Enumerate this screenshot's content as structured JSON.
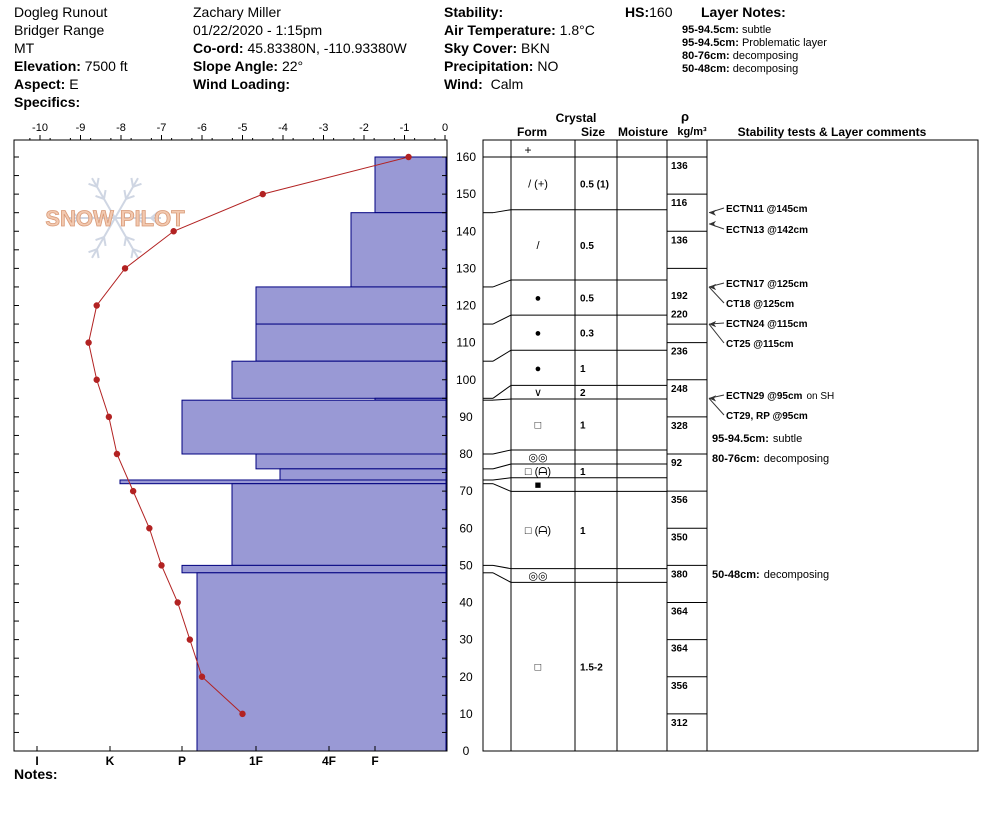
{
  "header": {
    "location": "Dogleg Runout",
    "range": "Bridger Range",
    "state": "MT",
    "elevation_label": "Elevation:",
    "elevation": "7500 ft",
    "aspect_label": "Aspect:",
    "aspect": "E",
    "specifics_label": "Specifics:",
    "observer": "Zachary Miller",
    "datetime": "01/22/2020 - 1:15pm",
    "coord_label": "Co-ord:",
    "coord": "45.83380N, -110.93380W",
    "slope_label": "Slope Angle:",
    "slope": "22°",
    "wind_loading_label": "Wind Loading:",
    "stability_label": "Stability:",
    "air_temp_label": "Air Temperature:",
    "air_temp": "1.8°C",
    "sky_label": "Sky Cover:",
    "sky": "BKN",
    "precip_label": "Precipitation:",
    "precip": "NO",
    "wind_label": "Wind:",
    "wind": "Calm",
    "hs_label": "HS:",
    "hs": "160",
    "layer_notes_label": "Layer Notes:"
  },
  "layer_notes": [
    {
      "range": "95-94.5cm:",
      "text": "subtle"
    },
    {
      "range": "95-94.5cm:",
      "text": "Problematic layer"
    },
    {
      "range": "80-76cm:",
      "text": "decomposing"
    },
    {
      "range": "50-48cm:",
      "text": "decomposing"
    }
  ],
  "notes_label": "Notes:",
  "watermark": "SNOW PILOT",
  "table_headers": {
    "crystal": "Crystal",
    "form": "Form",
    "size": "Size",
    "moisture": "Moisture",
    "rho": "ρ",
    "density_unit": "kg/m³",
    "stability": "Stability tests & Layer comments"
  },
  "colors": {
    "hardness_fill": "#9999d5",
    "hardness_stroke": "#000080",
    "temp_line": "#b22222"
  },
  "chart_data": {
    "type": "snow-profile",
    "temperature_axis": {
      "min": -10,
      "max": 0,
      "ticks": [
        -10,
        -9,
        -8,
        -7,
        -6,
        -5,
        -4,
        -3,
        -2,
        -1,
        0
      ]
    },
    "height_axis": {
      "min": 0,
      "max": 160,
      "ticks": [
        0,
        10,
        20,
        30,
        40,
        50,
        60,
        70,
        80,
        90,
        100,
        110,
        120,
        130,
        140,
        150,
        160
      ]
    },
    "hardness_axis": {
      "labels": [
        "I",
        "K",
        "P",
        "1F",
        "4F",
        "F"
      ]
    },
    "temperature_profile": [
      {
        "h": 160,
        "t": -0.9
      },
      {
        "h": 150,
        "t": -4.5
      },
      {
        "h": 140,
        "t": -6.7
      },
      {
        "h": 130,
        "t": -7.9
      },
      {
        "h": 120,
        "t": -8.6
      },
      {
        "h": 110,
        "t": -8.8
      },
      {
        "h": 100,
        "t": -8.6
      },
      {
        "h": 90,
        "t": -8.3
      },
      {
        "h": 80,
        "t": -8.1
      },
      {
        "h": 70,
        "t": -7.7
      },
      {
        "h": 60,
        "t": -7.3
      },
      {
        "h": 50,
        "t": -7.0
      },
      {
        "h": 40,
        "t": -6.6
      },
      {
        "h": 30,
        "t": -6.3
      },
      {
        "h": 20,
        "t": -6.0
      },
      {
        "h": 10,
        "t": -5.0
      }
    ],
    "hardness_layers": [
      {
        "top": 160,
        "bottom": 145,
        "hardness": "F"
      },
      {
        "top": 145,
        "bottom": 125,
        "hardness": "F+"
      },
      {
        "top": 125,
        "bottom": 115,
        "hardness": "1F"
      },
      {
        "top": 115,
        "bottom": 105,
        "hardness": "1F"
      },
      {
        "top": 105,
        "bottom": 95,
        "hardness": "1F-"
      },
      {
        "top": 95,
        "bottom": 94.5,
        "hardness": "F"
      },
      {
        "top": 94.5,
        "bottom": 80,
        "hardness": "P"
      },
      {
        "top": 80,
        "bottom": 76,
        "hardness": "1F"
      },
      {
        "top": 76,
        "bottom": 73,
        "hardness": "1F+"
      },
      {
        "top": 73,
        "bottom": 72,
        "hardness": "K+"
      },
      {
        "top": 72,
        "bottom": 50,
        "hardness": "1F-"
      },
      {
        "top": 50,
        "bottom": 48,
        "hardness": "P"
      },
      {
        "top": 48,
        "bottom": 0,
        "hardness": "P-"
      }
    ],
    "layers": [
      {
        "top": 160,
        "bottom": 145,
        "form": "/ (+)",
        "size": "0.5 (1)"
      },
      {
        "top": 145,
        "bottom": 125,
        "form": "/",
        "size": "0.5"
      },
      {
        "top": 125,
        "bottom": 115,
        "form": "●",
        "size": "0.5"
      },
      {
        "top": 115,
        "bottom": 105,
        "form": "●",
        "size": "0.3"
      },
      {
        "top": 105,
        "bottom": 95,
        "form": "●",
        "size": "1"
      },
      {
        "top": 95,
        "bottom": 94.5,
        "form": "∨",
        "size": "2"
      },
      {
        "top": 94.5,
        "bottom": 80,
        "form": "□",
        "size": "1"
      },
      {
        "top": 80,
        "bottom": 76,
        "form": "◎◎",
        "size": ""
      },
      {
        "top": 76,
        "bottom": 73,
        "form": "□ (ᗩ)",
        "size": "1"
      },
      {
        "top": 73,
        "bottom": 72,
        "form": "■",
        "size": ""
      },
      {
        "top": 72,
        "bottom": 50,
        "form": "□ (ᗩ)",
        "size": "1"
      },
      {
        "top": 50,
        "bottom": 48,
        "form": "◎◎",
        "size": ""
      },
      {
        "top": 48,
        "bottom": 0,
        "form": "□",
        "size": "1.5-2"
      }
    ],
    "density": [
      {
        "top": 160,
        "bottom": 150,
        "value": "136"
      },
      {
        "top": 150,
        "bottom": 140,
        "value": "116"
      },
      {
        "top": 140,
        "bottom": 130,
        "value": "136"
      },
      {
        "top": 125,
        "bottom": 115,
        "value": "192"
      },
      {
        "top": 120,
        "bottom": 110,
        "value": "220"
      },
      {
        "top": 110,
        "bottom": 100,
        "value": "236"
      },
      {
        "top": 100,
        "bottom": 90,
        "value": "248"
      },
      {
        "top": 90,
        "bottom": 80,
        "value": "328"
      },
      {
        "top": 80,
        "bottom": 70,
        "value": "92"
      },
      {
        "top": 70,
        "bottom": 60,
        "value": "356"
      },
      {
        "top": 60,
        "bottom": 50,
        "value": "350"
      },
      {
        "top": 50,
        "bottom": 40,
        "value": "380"
      },
      {
        "top": 40,
        "bottom": 30,
        "value": "364"
      },
      {
        "top": 30,
        "bottom": 20,
        "value": "364"
      },
      {
        "top": 20,
        "bottom": 10,
        "value": "356"
      },
      {
        "top": 10,
        "bottom": 0,
        "value": "312"
      }
    ],
    "stability_tests": [
      {
        "h": 145,
        "text": "ECTN11 @145cm"
      },
      {
        "h": 142,
        "text": "ECTN13 @142cm"
      },
      {
        "h": 125,
        "text": "ECTN17 @125cm"
      },
      {
        "h": 125,
        "text": "CT18 @125cm"
      },
      {
        "h": 115,
        "text": "ECTN24 @115cm"
      },
      {
        "h": 115,
        "text": "CT25 @115cm"
      },
      {
        "h": 95,
        "text": "ECTN29 @95cm",
        "extra": "on SH"
      },
      {
        "h": 95,
        "text": "CT29, RP @95cm"
      }
    ],
    "layer_comments": [
      {
        "range": "95-94.5cm:",
        "text": "subtle"
      },
      {
        "range": "80-76cm:",
        "text": "decomposing"
      },
      {
        "range": "50-48cm:",
        "text": "decomposing"
      }
    ]
  }
}
